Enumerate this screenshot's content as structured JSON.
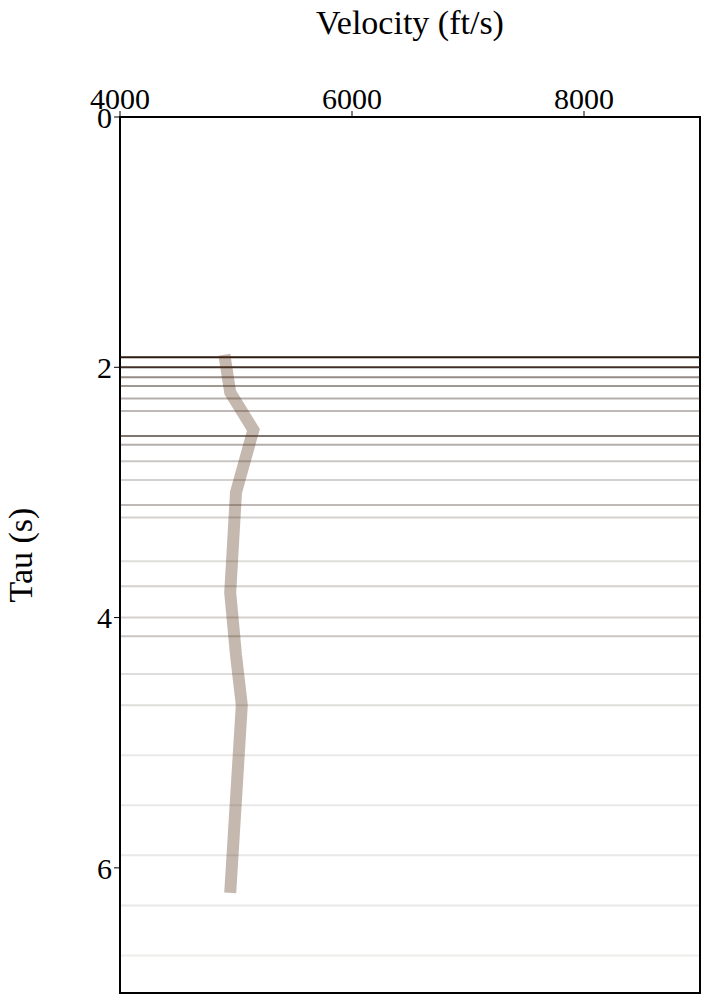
{
  "chart_data": {
    "type": "velocity_scan",
    "xlabel": "Velocity (ft/s)",
    "ylabel": "Tau (s)",
    "xlim": [
      4000,
      9000
    ],
    "xticks": [
      4000,
      6000,
      8000
    ],
    "ylim": [
      0,
      7
    ],
    "yticks": [
      0,
      2,
      4,
      6
    ],
    "grid": false,
    "events": {
      "color": "#2b1a10",
      "tau": [
        1.92,
        2.0,
        2.08,
        2.15,
        2.25,
        2.35,
        2.55,
        2.62,
        2.75,
        2.9,
        3.1,
        3.2,
        3.55,
        3.75,
        4.0,
        4.15,
        4.45,
        4.7,
        5.1,
        5.5,
        5.9,
        6.3,
        6.7
      ],
      "amplitude": [
        1.0,
        0.9,
        0.5,
        0.45,
        0.35,
        0.3,
        0.6,
        0.35,
        0.25,
        0.2,
        0.3,
        0.2,
        0.15,
        0.2,
        0.2,
        0.25,
        0.15,
        0.15,
        0.1,
        0.1,
        0.1,
        0.1,
        0.08
      ]
    },
    "trend": {
      "color": "#5a3418",
      "x": [
        4900,
        4950,
        5150,
        5000,
        4950,
        5000,
        5050,
        4950
      ],
      "values": [
        1.9,
        2.2,
        2.5,
        3.0,
        3.8,
        4.3,
        4.7,
        6.2
      ]
    }
  }
}
